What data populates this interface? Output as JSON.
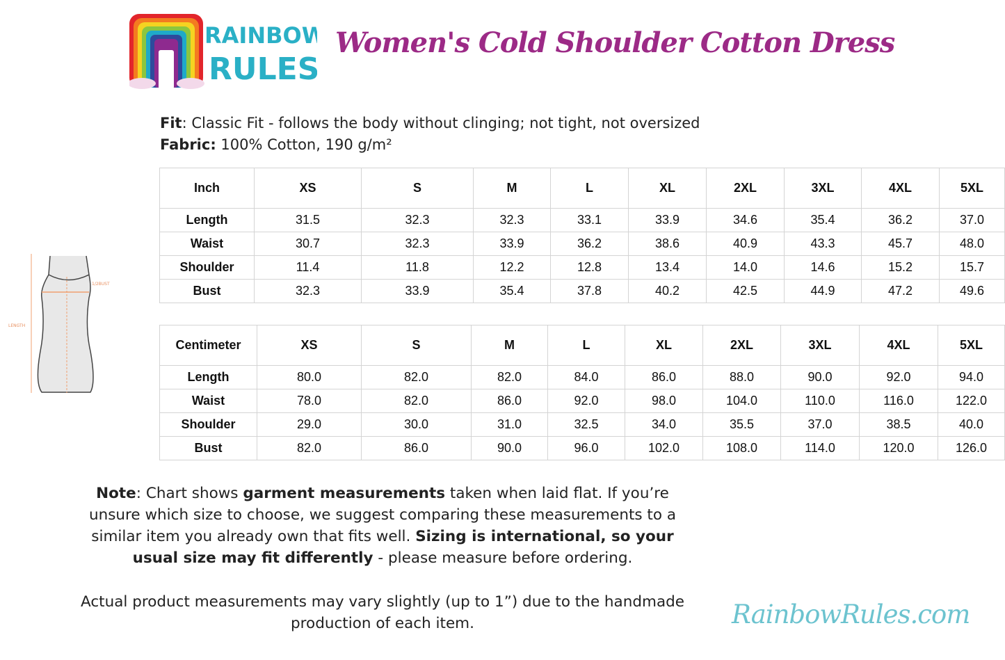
{
  "brand": {
    "logo_text_1": "RAINBOW",
    "logo_text_2": "RULES",
    "website": "RainbowRules.com",
    "colors": {
      "title": "#9c2a86",
      "logo": "#2ab0c6",
      "website": "#6cc3cf"
    }
  },
  "title": "Women's Cold Shoulder Cotton Dress",
  "fit": {
    "label": "Fit",
    "text": ": Classic Fit - follows the body without clinging; not tight, not oversized"
  },
  "fabric": {
    "label": "Fabric:",
    "text": " 100% Cotton, 190 g/m²"
  },
  "diagram": {
    "labels": [
      "LENGTH",
      "1/2BUST"
    ]
  },
  "inch_table": {
    "headers": [
      "Inch",
      "XS",
      "S",
      "M",
      "L",
      "XL",
      "2XL",
      "3XL",
      "4XL",
      "5XL"
    ],
    "rows": [
      [
        "Length",
        "31.5",
        "32.3",
        "32.3",
        "33.1",
        "33.9",
        "34.6",
        "35.4",
        "36.2",
        "37.0"
      ],
      [
        "Waist",
        "30.7",
        "32.3",
        "33.9",
        "36.2",
        "38.6",
        "40.9",
        "43.3",
        "45.7",
        "48.0"
      ],
      [
        "Shoulder",
        "11.4",
        "11.8",
        "12.2",
        "12.8",
        "13.4",
        "14.0",
        "14.6",
        "15.2",
        "15.7"
      ],
      [
        "Bust",
        "32.3",
        "33.9",
        "35.4",
        "37.8",
        "40.2",
        "42.5",
        "44.9",
        "47.2",
        "49.6"
      ]
    ]
  },
  "cm_table": {
    "headers": [
      "Centimeter",
      "XS",
      "S",
      "M",
      "L",
      "XL",
      "2XL",
      "3XL",
      "4XL",
      "5XL"
    ],
    "rows": [
      [
        "Length",
        "80.0",
        "82.0",
        "82.0",
        "84.0",
        "86.0",
        "88.0",
        "90.0",
        "92.0",
        "94.0"
      ],
      [
        "Waist",
        "78.0",
        "82.0",
        "86.0",
        "92.0",
        "98.0",
        "104.0",
        "110.0",
        "116.0",
        "122.0"
      ],
      [
        "Shoulder",
        "29.0",
        "30.0",
        "31.0",
        "32.5",
        "34.0",
        "35.5",
        "37.0",
        "38.5",
        "40.0"
      ],
      [
        "Bust",
        "82.0",
        "86.0",
        "90.0",
        "96.0",
        "102.0",
        "108.0",
        "114.0",
        "120.0",
        "126.0"
      ]
    ]
  },
  "note": {
    "p1": "Note",
    "p2": ": Chart shows ",
    "p3": "garment measurements",
    "p4": " taken when laid flat. If you’re unsure which size to choose, we suggest comparing these measurements to a similar item you already own that fits well. ",
    "p5": "Sizing is international, so your usual size may fit differently",
    "p6": " - please measure before ordering."
  },
  "disclaimer": "Actual product measurements may vary slightly (up to 1”) due to the handmade production of each item."
}
